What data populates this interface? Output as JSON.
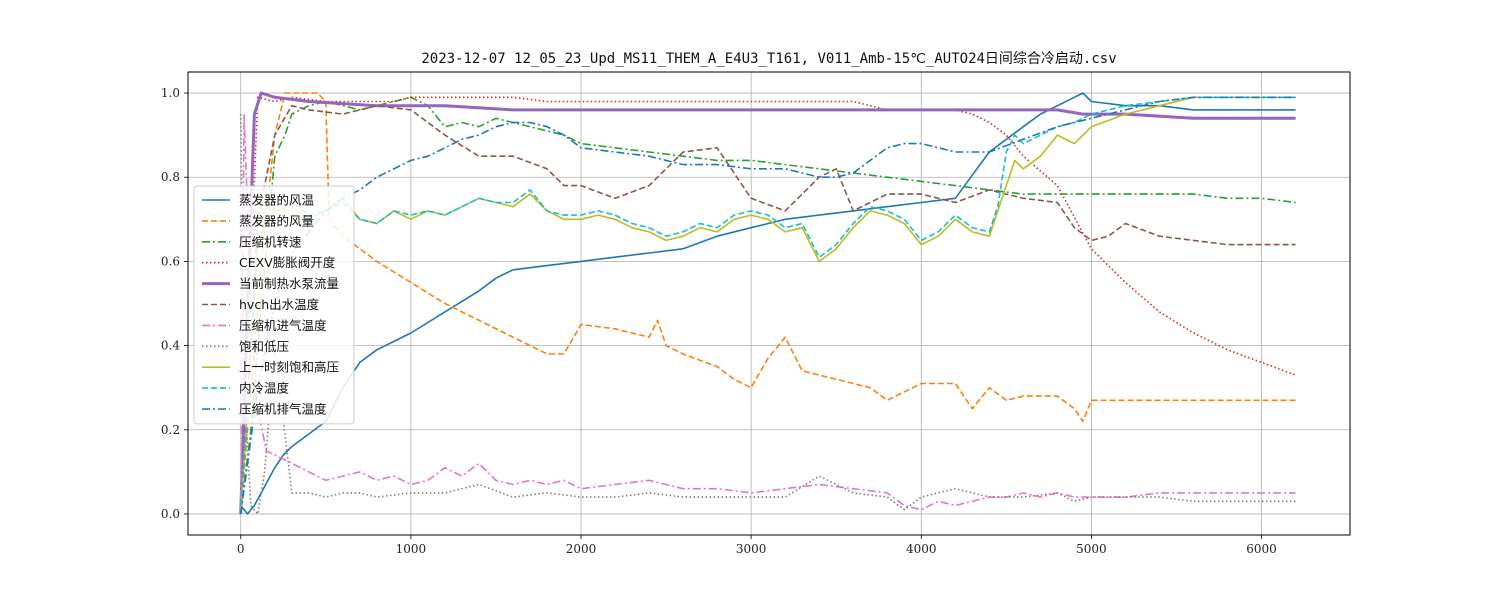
{
  "chart_data": {
    "type": "line",
    "title": "2023-12-07 12_05_23_Upd_MS11_THEM_A_E4U3_T161, V011_Amb-15℃_AUTO24日间综合冷启动.csv",
    "xlabel": "",
    "ylabel": "",
    "xlim": [
      -310,
      6520
    ],
    "ylim": [
      -0.05,
      1.05
    ],
    "xticks": [
      0,
      1000,
      2000,
      3000,
      4000,
      5000,
      6000
    ],
    "yticks": [
      0.0,
      0.2,
      0.4,
      0.6,
      0.8,
      1.0
    ],
    "xtick_labels": [
      "0",
      "1000",
      "2000",
      "3000",
      "4000",
      "5000",
      "6000"
    ],
    "ytick_labels": [
      "0.0",
      "0.2",
      "0.4",
      "0.6",
      "0.8",
      "1.0"
    ],
    "grid": true,
    "legend_position": "center-left",
    "series": [
      {
        "name": "蒸发器的风温",
        "color": "#1f77b4",
        "dash": "solid",
        "x": [
          0,
          40,
          80,
          120,
          160,
          200,
          250,
          300,
          400,
          500,
          600,
          700,
          800,
          900,
          1000,
          1200,
          1400,
          1500,
          1600,
          1800,
          2000,
          2200,
          2400,
          2600,
          2800,
          3000,
          3200,
          3400,
          3600,
          3800,
          4000,
          4200,
          4400,
          4500,
          4600,
          4700,
          4800,
          4900,
          4950,
          5000,
          5200,
          5400,
          5600,
          5800,
          6000,
          6200
        ],
        "y": [
          0.02,
          0.0,
          0.02,
          0.05,
          0.08,
          0.11,
          0.14,
          0.16,
          0.19,
          0.22,
          0.3,
          0.36,
          0.39,
          0.41,
          0.43,
          0.48,
          0.53,
          0.56,
          0.58,
          0.59,
          0.6,
          0.61,
          0.62,
          0.63,
          0.66,
          0.68,
          0.7,
          0.71,
          0.72,
          0.73,
          0.74,
          0.75,
          0.86,
          0.89,
          0.92,
          0.95,
          0.97,
          0.99,
          1.0,
          0.98,
          0.97,
          0.97,
          0.96,
          0.96,
          0.96,
          0.96
        ]
      },
      {
        "name": "蒸发器的风量",
        "color": "#ff7f0e",
        "dash": "dashed",
        "x": [
          0,
          60,
          120,
          200,
          260,
          300,
          450,
          500,
          520,
          600,
          800,
          1000,
          1200,
          1400,
          1600,
          1700,
          1800,
          1900,
          2000,
          2200,
          2400,
          2450,
          2500,
          2600,
          2800,
          2900,
          3000,
          3100,
          3200,
          3300,
          3500,
          3600,
          3700,
          3800,
          4000,
          4200,
          4300,
          4400,
          4500,
          4600,
          4800,
          4900,
          4950,
          5000,
          5200,
          5400,
          5600,
          5800,
          6000,
          6200
        ],
        "y": [
          0.0,
          0.3,
          0.6,
          0.9,
          1.0,
          1.0,
          1.0,
          0.98,
          0.7,
          0.66,
          0.6,
          0.55,
          0.5,
          0.46,
          0.42,
          0.4,
          0.38,
          0.38,
          0.45,
          0.44,
          0.42,
          0.46,
          0.4,
          0.38,
          0.35,
          0.32,
          0.3,
          0.37,
          0.42,
          0.34,
          0.32,
          0.31,
          0.3,
          0.27,
          0.31,
          0.31,
          0.25,
          0.3,
          0.27,
          0.28,
          0.28,
          0.25,
          0.22,
          0.27,
          0.27,
          0.27,
          0.27,
          0.27,
          0.27,
          0.27
        ]
      },
      {
        "name": "压缩机转速",
        "color": "#2ca02c",
        "dash": "dashdot",
        "x": [
          0,
          60,
          120,
          200,
          260,
          300,
          400,
          500,
          600,
          700,
          800,
          900,
          1000,
          1100,
          1200,
          1300,
          1400,
          1500,
          1600,
          1700,
          1800,
          1900,
          2000,
          2200,
          2400,
          2600,
          2800,
          3000,
          3200,
          3400,
          3600,
          3800,
          4000,
          4200,
          4400,
          4600,
          4800,
          5000,
          5200,
          5400,
          5600,
          5800,
          6000,
          6200
        ],
        "y": [
          0.0,
          0.2,
          0.5,
          0.85,
          0.9,
          0.95,
          0.97,
          0.98,
          0.97,
          0.96,
          0.97,
          0.98,
          0.99,
          0.97,
          0.92,
          0.93,
          0.92,
          0.94,
          0.93,
          0.92,
          0.91,
          0.9,
          0.88,
          0.87,
          0.86,
          0.85,
          0.84,
          0.84,
          0.83,
          0.82,
          0.81,
          0.8,
          0.79,
          0.78,
          0.77,
          0.76,
          0.76,
          0.76,
          0.76,
          0.76,
          0.76,
          0.75,
          0.75,
          0.74
        ]
      },
      {
        "name": "CEXV膨胀阀开度",
        "color": "#d62728",
        "dash": "dotted",
        "x": [
          0,
          100,
          200,
          300,
          500,
          700,
          900,
          1000,
          1200,
          1400,
          1600,
          1800,
          2000,
          2400,
          2800,
          3200,
          3600,
          3700,
          3800,
          4000,
          4200,
          4300,
          4400,
          4500,
          4600,
          4800,
          5000,
          5200,
          5400,
          5600,
          5800,
          6000,
          6200
        ],
        "y": [
          0.0,
          0.99,
          0.98,
          0.99,
          0.98,
          0.98,
          0.98,
          0.99,
          0.99,
          0.99,
          0.99,
          0.98,
          0.98,
          0.98,
          0.98,
          0.98,
          0.98,
          0.97,
          0.96,
          0.96,
          0.96,
          0.95,
          0.93,
          0.9,
          0.85,
          0.78,
          0.63,
          0.55,
          0.48,
          0.43,
          0.39,
          0.36,
          0.33
        ]
      },
      {
        "name": "当前制热水泵流量",
        "color": "#9467bd",
        "dash": "solid",
        "x": [
          0,
          40,
          80,
          120,
          200,
          400,
          800,
          1200,
          1600,
          2000,
          2400,
          2800,
          3200,
          3600,
          4000,
          4400,
          4800,
          4950,
          5000,
          5200,
          5600,
          6000,
          6200
        ],
        "y": [
          0.0,
          0.5,
          0.95,
          1.0,
          0.99,
          0.98,
          0.97,
          0.97,
          0.96,
          0.96,
          0.96,
          0.96,
          0.96,
          0.96,
          0.96,
          0.96,
          0.96,
          0.95,
          0.95,
          0.95,
          0.94,
          0.94,
          0.94
        ]
      },
      {
        "name": "hvch出水温度",
        "color": "#8c564b",
        "dash": "dashed",
        "x": [
          0,
          100,
          200,
          300,
          400,
          600,
          800,
          1000,
          1200,
          1400,
          1600,
          1800,
          1900,
          2000,
          2200,
          2400,
          2600,
          2800,
          3000,
          3200,
          3400,
          3500,
          3600,
          3800,
          4000,
          4200,
          4400,
          4600,
          4800,
          4900,
          5000,
          5100,
          5200,
          5400,
          5600,
          5800,
          6000,
          6200
        ],
        "y": [
          0.0,
          0.7,
          0.9,
          0.97,
          0.96,
          0.95,
          0.97,
          0.96,
          0.9,
          0.85,
          0.85,
          0.82,
          0.78,
          0.78,
          0.75,
          0.78,
          0.86,
          0.87,
          0.75,
          0.72,
          0.8,
          0.82,
          0.72,
          0.76,
          0.76,
          0.74,
          0.77,
          0.75,
          0.74,
          0.68,
          0.65,
          0.66,
          0.69,
          0.66,
          0.65,
          0.64,
          0.64,
          0.64
        ]
      },
      {
        "name": "压缩机进气温度",
        "color": "#e377c2",
        "dash": "dashdot",
        "x": [
          0,
          20,
          60,
          100,
          150,
          200,
          300,
          400,
          500,
          600,
          700,
          800,
          900,
          1000,
          1100,
          1200,
          1300,
          1400,
          1500,
          1600,
          1700,
          1800,
          1900,
          2000,
          2200,
          2400,
          2600,
          2800,
          3000,
          3200,
          3400,
          3600,
          3800,
          3900,
          4000,
          4100,
          4200,
          4300,
          4400,
          4500,
          4600,
          4700,
          4800,
          4900,
          5000,
          5200,
          5400,
          5600,
          5800,
          6000,
          6200
        ],
        "y": [
          0.0,
          0.95,
          0.5,
          0.25,
          0.15,
          0.14,
          0.12,
          0.1,
          0.08,
          0.09,
          0.1,
          0.08,
          0.09,
          0.07,
          0.08,
          0.11,
          0.09,
          0.12,
          0.08,
          0.07,
          0.08,
          0.07,
          0.08,
          0.06,
          0.07,
          0.08,
          0.06,
          0.06,
          0.05,
          0.06,
          0.07,
          0.06,
          0.05,
          0.02,
          0.01,
          0.03,
          0.02,
          0.03,
          0.04,
          0.04,
          0.05,
          0.04,
          0.05,
          0.04,
          0.04,
          0.04,
          0.05,
          0.05,
          0.05,
          0.05,
          0.05
        ]
      },
      {
        "name": "饱和低压",
        "color": "#7f7f7f",
        "dash": "dotted",
        "x": [
          0,
          20,
          60,
          100,
          140,
          200,
          300,
          400,
          500,
          600,
          700,
          800,
          1000,
          1200,
          1400,
          1600,
          1800,
          2000,
          2200,
          2400,
          2600,
          2800,
          3000,
          3200,
          3400,
          3600,
          3800,
          3900,
          4000,
          4200,
          4400,
          4600,
          4800,
          4900,
          5000,
          5200,
          5400,
          5600,
          5800,
          6000,
          6200
        ],
        "y": [
          0.95,
          0.3,
          0.02,
          0.0,
          0.1,
          0.4,
          0.05,
          0.05,
          0.04,
          0.05,
          0.05,
          0.04,
          0.05,
          0.05,
          0.07,
          0.04,
          0.05,
          0.04,
          0.04,
          0.05,
          0.04,
          0.04,
          0.04,
          0.04,
          0.09,
          0.05,
          0.04,
          0.01,
          0.04,
          0.06,
          0.04,
          0.04,
          0.05,
          0.03,
          0.04,
          0.04,
          0.04,
          0.03,
          0.03,
          0.03,
          0.03
        ]
      },
      {
        "name": "上一时刻饱和高压",
        "color": "#bcbd22",
        "dash": "solid",
        "x": [
          0,
          100,
          200,
          300,
          400,
          500,
          600,
          700,
          800,
          900,
          1000,
          1100,
          1200,
          1300,
          1400,
          1500,
          1600,
          1700,
          1800,
          1900,
          2000,
          2100,
          2200,
          2300,
          2400,
          2500,
          2600,
          2700,
          2800,
          2900,
          3000,
          3100,
          3200,
          3300,
          3400,
          3500,
          3600,
          3700,
          3800,
          3900,
          4000,
          4100,
          4200,
          4300,
          4400,
          4450,
          4500,
          4550,
          4600,
          4700,
          4800,
          4900,
          5000,
          5200,
          5400,
          5600,
          5800,
          6000,
          6200
        ],
        "y": [
          0.0,
          0.65,
          0.72,
          0.73,
          0.7,
          0.72,
          0.75,
          0.7,
          0.69,
          0.72,
          0.7,
          0.72,
          0.71,
          0.73,
          0.75,
          0.74,
          0.73,
          0.76,
          0.72,
          0.7,
          0.7,
          0.71,
          0.7,
          0.68,
          0.67,
          0.65,
          0.66,
          0.68,
          0.67,
          0.7,
          0.71,
          0.7,
          0.67,
          0.68,
          0.6,
          0.63,
          0.68,
          0.72,
          0.71,
          0.69,
          0.64,
          0.66,
          0.7,
          0.67,
          0.66,
          0.72,
          0.78,
          0.84,
          0.82,
          0.85,
          0.9,
          0.88,
          0.92,
          0.95,
          0.97,
          0.99,
          0.99,
          0.99,
          0.99
        ]
      },
      {
        "name": "内冷温度",
        "color": "#17becf",
        "dash": "dashed",
        "x": [
          0,
          100,
          200,
          300,
          400,
          500,
          600,
          700,
          800,
          900,
          1000,
          1100,
          1200,
          1300,
          1400,
          1500,
          1600,
          1700,
          1800,
          1900,
          2000,
          2100,
          2200,
          2300,
          2400,
          2500,
          2600,
          2700,
          2800,
          2900,
          3000,
          3100,
          3200,
          3300,
          3400,
          3500,
          3600,
          3700,
          3800,
          3900,
          4000,
          4100,
          4200,
          4300,
          4400,
          4450,
          4500,
          4550,
          4600,
          4700,
          4800,
          4900,
          5000,
          5200,
          5400,
          5600,
          5800,
          6000,
          6200
        ],
        "y": [
          0.0,
          0.66,
          0.73,
          0.74,
          0.71,
          0.72,
          0.74,
          0.7,
          0.69,
          0.72,
          0.71,
          0.72,
          0.71,
          0.73,
          0.75,
          0.74,
          0.74,
          0.77,
          0.72,
          0.71,
          0.71,
          0.72,
          0.71,
          0.69,
          0.68,
          0.66,
          0.67,
          0.69,
          0.68,
          0.71,
          0.72,
          0.71,
          0.68,
          0.69,
          0.61,
          0.64,
          0.69,
          0.73,
          0.72,
          0.7,
          0.65,
          0.67,
          0.71,
          0.68,
          0.67,
          0.73,
          0.86,
          0.9,
          0.88,
          0.9,
          0.92,
          0.93,
          0.95,
          0.97,
          0.98,
          0.99,
          0.99,
          0.99,
          0.99
        ]
      },
      {
        "name": "压缩机排气温度",
        "color": "#1f77b4",
        "dash": "dashdot",
        "x": [
          0,
          100,
          200,
          300,
          400,
          500,
          600,
          700,
          800,
          900,
          1000,
          1100,
          1200,
          1300,
          1400,
          1500,
          1600,
          1700,
          1800,
          1900,
          2000,
          2200,
          2400,
          2600,
          2800,
          3000,
          3200,
          3400,
          3500,
          3600,
          3700,
          3800,
          3900,
          4000,
          4200,
          4400,
          4600,
          4800,
          5000,
          5200,
          5400,
          5600,
          5800,
          6000,
          6200
        ],
        "y": [
          0.0,
          0.3,
          0.5,
          0.62,
          0.67,
          0.72,
          0.75,
          0.77,
          0.8,
          0.82,
          0.84,
          0.85,
          0.87,
          0.89,
          0.9,
          0.92,
          0.93,
          0.93,
          0.92,
          0.9,
          0.87,
          0.86,
          0.85,
          0.83,
          0.83,
          0.82,
          0.82,
          0.8,
          0.8,
          0.81,
          0.84,
          0.87,
          0.88,
          0.88,
          0.86,
          0.86,
          0.89,
          0.92,
          0.94,
          0.96,
          0.98,
          0.99,
          0.99,
          0.99,
          0.99
        ]
      }
    ]
  }
}
